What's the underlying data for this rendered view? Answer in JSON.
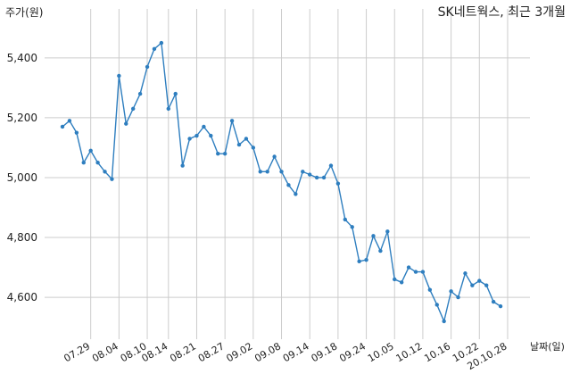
{
  "chart_data": {
    "type": "line",
    "title": "SK네트웍스, 최근 3개월",
    "xlabel": "날짜(일)",
    "ylabel": "주가(원)",
    "ylim": [
      4460,
      5510
    ],
    "yticks": [
      4600,
      4800,
      5000,
      5200,
      5400
    ],
    "ytick_labels": [
      "4,600",
      "4,800",
      "5,000",
      "5,200",
      "5,400"
    ],
    "xtick_labels": [
      "07.29",
      "08.04",
      "08.10",
      "08.14",
      "08.21",
      "08.27",
      "09.02",
      "09.08",
      "09.14",
      "09.18",
      "09.24",
      "10.05",
      "10.12",
      "10.16",
      "10.22",
      "20.10.28"
    ],
    "xtick_index": [
      4,
      8,
      12,
      15,
      19,
      23,
      27,
      31,
      35,
      39,
      43,
      47,
      51,
      55,
      59,
      63
    ],
    "grid": true,
    "color": "#2e7ebf",
    "values": [
      5170,
      5190,
      5150,
      5050,
      5090,
      5050,
      5020,
      4995,
      5340,
      5180,
      5230,
      5280,
      5370,
      5430,
      5450,
      5230,
      5280,
      5040,
      5130,
      5140,
      5170,
      5140,
      5080,
      5080,
      5190,
      5110,
      5130,
      5100,
      5020,
      5020,
      5070,
      5020,
      4975,
      4945,
      5020,
      5010,
      5000,
      5000,
      5040,
      4980,
      4860,
      4835,
      4720,
      4725,
      4805,
      4755,
      4820,
      4660,
      4650,
      4700,
      4685,
      4685,
      4625,
      4575,
      4520,
      4620,
      4600,
      4680,
      4640,
      4655,
      4640,
      4585,
      4570
    ]
  }
}
